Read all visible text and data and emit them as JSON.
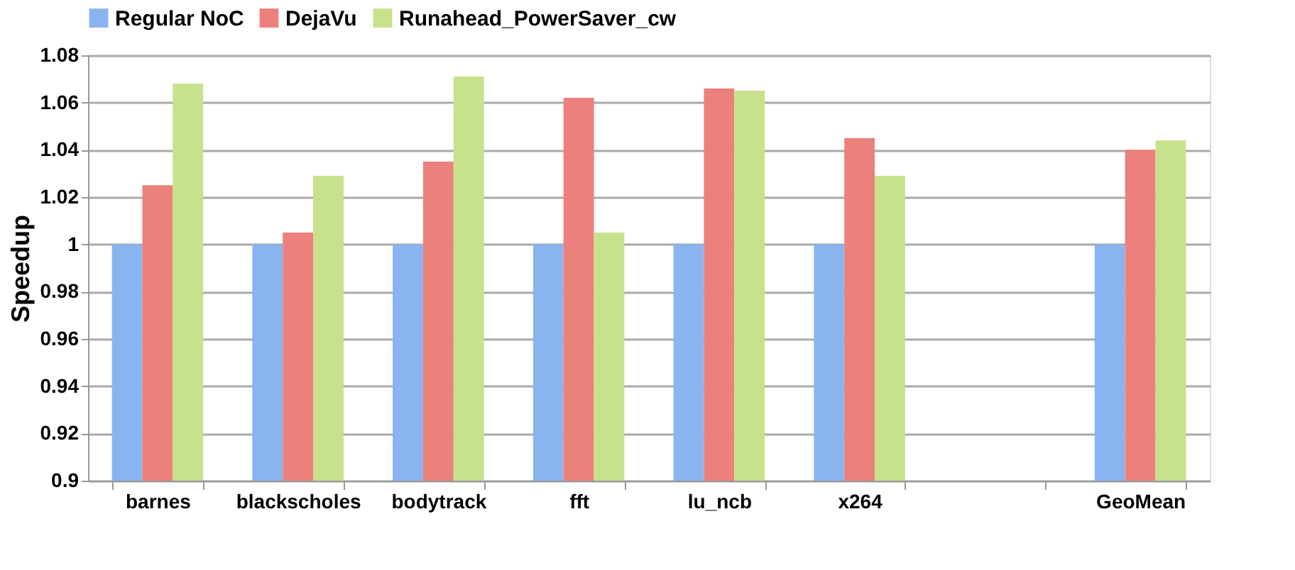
{
  "chart_data": {
    "type": "bar",
    "ylabel": "Speedup",
    "categories": [
      "barnes",
      "blackscholes",
      "bodytrack",
      "fft",
      "lu_ncb",
      "x264",
      null,
      "GeoMean"
    ],
    "series": [
      {
        "name": "Regular NoC",
        "color": "#8ab4f0",
        "values": [
          1.0,
          1.0,
          1.0,
          1.0,
          1.0,
          1.0,
          null,
          1.0
        ]
      },
      {
        "name": "DejaVu",
        "color": "#ec807c",
        "values": [
          1.025,
          1.005,
          1.035,
          1.062,
          1.066,
          1.045,
          null,
          1.04
        ]
      },
      {
        "name": "Runahead_PowerSaver_cw",
        "color": "#c8e28c",
        "values": [
          1.068,
          1.029,
          1.071,
          1.005,
          1.065,
          1.029,
          null,
          1.044
        ]
      }
    ],
    "ylim": [
      0.9,
      1.08
    ],
    "yticks": [
      0.9,
      0.92,
      0.94,
      0.96,
      0.98,
      1,
      1.02,
      1.04,
      1.06,
      1.08
    ],
    "grid": "y",
    "legend": "top"
  }
}
